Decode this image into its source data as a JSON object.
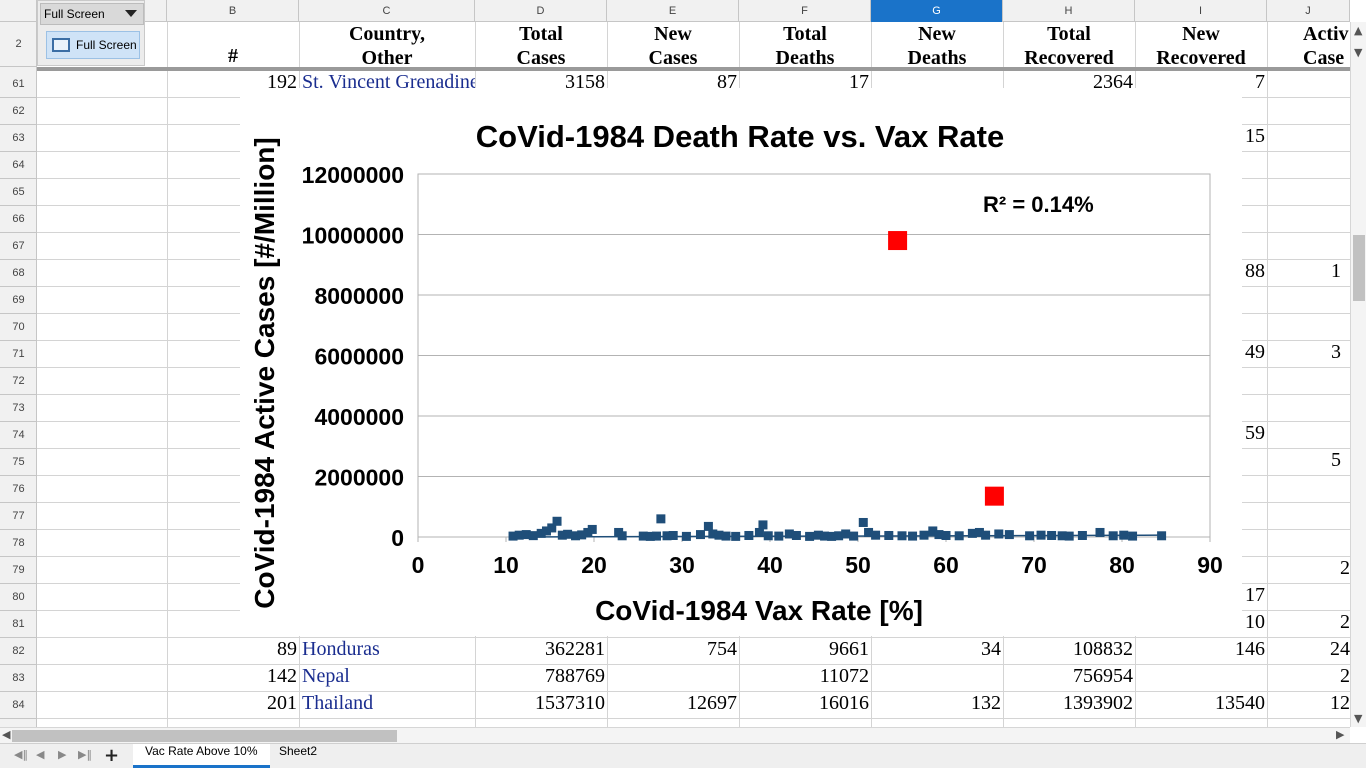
{
  "toolbar": {
    "title": "Full Screen",
    "button_label": "Full Screen"
  },
  "columns": [
    "B",
    "C",
    "D",
    "E",
    "F",
    "G",
    "H",
    "I",
    "J"
  ],
  "selected_column": "G",
  "header_row_number": "2",
  "header_labels": {
    "B": "#",
    "C": [
      "Country,",
      "Other"
    ],
    "D": [
      "Total",
      "Cases"
    ],
    "E": [
      "New",
      "Cases"
    ],
    "F": [
      "Total",
      "Deaths"
    ],
    "G": [
      "New",
      "Deaths"
    ],
    "H": [
      "Total",
      "Recovered"
    ],
    "I": [
      "New",
      "Recovered"
    ],
    "J": [
      "Activ",
      "Case"
    ]
  },
  "row_numbers": [
    "61",
    "62",
    "63",
    "64",
    "65",
    "66",
    "67",
    "68",
    "69",
    "70",
    "71",
    "72",
    "73",
    "74",
    "75",
    "76",
    "77",
    "78",
    "79",
    "80",
    "81",
    "82",
    "83",
    "84"
  ],
  "rows": [
    {
      "num": "192",
      "country": "St. Vincent Grenadines",
      "total_cases": "3158",
      "new_cases": "87",
      "total_deaths": "17",
      "new_deaths": "",
      "total_recovered": "2364",
      "new_recovered": "7",
      "active": ""
    },
    {
      "num": "89",
      "country": "Honduras",
      "total_cases": "362281",
      "new_cases": "754",
      "total_deaths": "9661",
      "new_deaths": "34",
      "total_recovered": "108832",
      "new_recovered": "146",
      "active": "24"
    },
    {
      "num": "142",
      "country": "Nepal",
      "total_cases": "788769",
      "new_cases": "",
      "total_deaths": "11072",
      "new_deaths": "",
      "total_recovered": "756954",
      "new_recovered": "",
      "active": "2"
    },
    {
      "num": "201",
      "country": "Thailand",
      "total_cases": "1537310",
      "new_cases": "12697",
      "total_deaths": "16016",
      "new_deaths": "132",
      "total_recovered": "1393902",
      "new_recovered": "13540",
      "active": "12"
    }
  ],
  "partial_right_values": [
    {
      "row": "63",
      "i": "15",
      "j": ""
    },
    {
      "row": "68",
      "i": "88",
      "j": "1"
    },
    {
      "row": "71",
      "i": "49",
      "j": "3"
    },
    {
      "row": "74",
      "i": "59",
      "j": ""
    },
    {
      "row": "75",
      "i": "",
      "j": "5"
    },
    {
      "row": "79",
      "i": "",
      "j": "2"
    },
    {
      "row": "80",
      "i": "17",
      "j": ""
    },
    {
      "row": "81",
      "i": "10",
      "j": "2"
    }
  ],
  "sheet_tabs": [
    "Vac Rate Above 10%",
    "Sheet2"
  ],
  "active_sheet": "Vac Rate Above 10%",
  "colors": {
    "series": "#1f4e79",
    "outlier": "#ff0000",
    "selected_col": "#1a73c9",
    "link": "#1a2d8f"
  },
  "chart_data": {
    "type": "scatter",
    "title": "CoVid-1984 Death Rate vs. Vax Rate",
    "xlabel": "CoVid-1984 Vax Rate [%]",
    "ylabel": "CoVid-1984 Active Cases [#/Million]",
    "annotation": "R² = 0.14%",
    "xlim": [
      0,
      90
    ],
    "ylim": [
      0,
      12000000
    ],
    "xticks": [
      "0",
      "10",
      "20",
      "30",
      "40",
      "50",
      "60",
      "70",
      "80",
      "90"
    ],
    "yticks": [
      "0",
      "2000000",
      "4000000",
      "6000000",
      "8000000",
      "10000000",
      "12000000"
    ],
    "grid": "horizontal",
    "trendline": {
      "from": [
        10.5,
        0
      ],
      "to": [
        84.5,
        60000
      ]
    },
    "series": [
      {
        "marker": "square",
        "x": [
          10.8,
          11.5,
          12.3,
          13.1,
          14.0,
          14.6,
          15.2,
          15.8,
          16.4,
          17.0,
          17.9,
          18.6,
          19.3,
          19.8,
          22.8,
          23.2,
          25.6,
          26.4,
          27.1,
          27.6,
          28.3,
          29.0,
          30.5,
          32.1,
          33.0,
          33.5,
          34.2,
          35.0,
          36.1,
          37.6,
          38.8,
          39.2,
          39.8,
          41.0,
          42.2,
          43.0,
          44.5,
          45.5,
          46.2,
          47.0,
          47.8,
          48.6,
          49.5,
          50.6,
          51.2,
          52.0,
          53.5,
          55.0,
          56.2,
          57.5,
          58.5,
          59.2,
          60.0,
          61.5,
          63.0,
          63.8,
          64.5,
          66.0,
          67.2,
          69.5,
          70.8,
          72.0,
          73.2,
          74.0,
          75.5,
          77.5,
          79.0,
          80.2,
          81.2,
          84.5
        ],
        "y": [
          30000,
          60000,
          80000,
          45000,
          120000,
          200000,
          300000,
          520000,
          60000,
          90000,
          40000,
          70000,
          150000,
          250000,
          150000,
          40000,
          30000,
          20000,
          30000,
          600000,
          40000,
          50000,
          20000,
          80000,
          350000,
          100000,
          60000,
          30000,
          20000,
          50000,
          150000,
          400000,
          40000,
          30000,
          100000,
          50000,
          20000,
          60000,
          30000,
          20000,
          40000,
          100000,
          30000,
          480000,
          150000,
          60000,
          50000,
          40000,
          30000,
          60000,
          200000,
          80000,
          50000,
          40000,
          120000,
          150000,
          60000,
          100000,
          80000,
          40000,
          60000,
          50000,
          40000,
          30000,
          50000,
          150000,
          40000,
          60000,
          30000,
          40000
        ]
      },
      {
        "marker": "square",
        "outlier": true,
        "x": [
          54.5,
          65.5
        ],
        "y": [
          9800000,
          1350000
        ]
      }
    ]
  }
}
